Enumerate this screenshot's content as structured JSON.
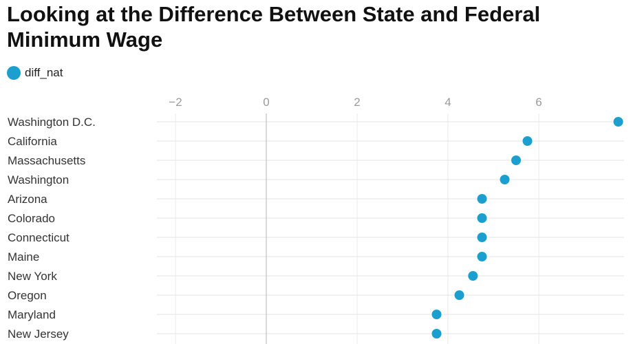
{
  "chart_data": {
    "type": "scatter",
    "title": "Looking at the Difference Between State and Federal Minimum Wage",
    "series": [
      {
        "name": "diff_nat",
        "color": "#1a9fcf",
        "values": [
          7.75,
          5.75,
          5.5,
          5.25,
          4.75,
          4.75,
          4.75,
          4.75,
          4.55,
          4.25,
          3.75,
          3.75
        ]
      }
    ],
    "categories": [
      "Washington D.C.",
      "California",
      "Massachusetts",
      "Washington",
      "Arizona",
      "Colorado",
      "Connecticut",
      "Maine",
      "New York",
      "Oregon",
      "Maryland",
      "New Jersey"
    ],
    "xlim": [
      -2.4,
      7.8
    ],
    "xticks": [
      -2,
      0,
      2,
      4,
      6
    ],
    "xtick_labels": [
      "−2",
      "0",
      "2",
      "4",
      "6"
    ],
    "grid": true,
    "legend_position": "top-left"
  }
}
